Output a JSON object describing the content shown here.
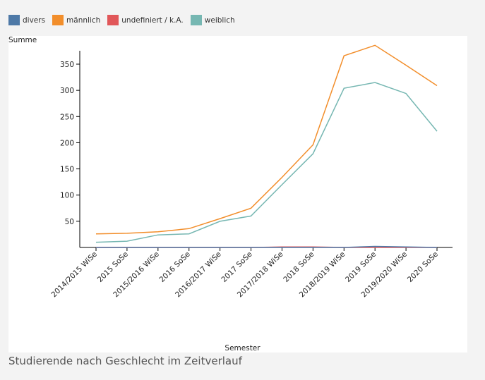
{
  "legend": [
    {
      "label": "divers",
      "color": "#4e79a7"
    },
    {
      "label": "männlich",
      "color": "#f28e2b"
    },
    {
      "label": "undefiniert / k.A.",
      "color": "#e15759"
    },
    {
      "label": "weiblich",
      "color": "#76b7b2"
    }
  ],
  "chart_data": {
    "type": "line",
    "title": "Studierende nach Geschlecht im Zeitverlauf",
    "xlabel": "Semester",
    "ylabel": "Summe",
    "categories": [
      "2014/2015 WiSe",
      "2015 SoSe",
      "2015/2016 WiSe",
      "2016 SoSe",
      "2016/2017 WiSe",
      "2017 SoSe",
      "2017/2018 WiSe",
      "2018 SoSe",
      "2018/2019 WiSe",
      "2019 SoSe",
      "2019/2020 WiSe",
      "2020 SoSe"
    ],
    "ylim": [
      0,
      385
    ],
    "yticks": [
      50,
      100,
      150,
      200,
      250,
      300,
      350
    ],
    "grid": false,
    "legend_position": "top-left",
    "series": [
      {
        "name": "divers",
        "color": "#4e79a7",
        "values": [
          0,
          0,
          0,
          0,
          0,
          0,
          0,
          0,
          0,
          2,
          1,
          0
        ]
      },
      {
        "name": "männlich",
        "color": "#f28e2b",
        "values": [
          26,
          27,
          30,
          36,
          55,
          75,
          134,
          196,
          366,
          386,
          348,
          309
        ]
      },
      {
        "name": "undefiniert / k.A.",
        "color": "#e15759",
        "values": [
          0,
          0,
          0,
          0,
          0,
          0,
          1,
          1,
          0,
          0,
          0,
          0
        ]
      },
      {
        "name": "weiblich",
        "color": "#76b7b2",
        "values": [
          10,
          12,
          24,
          26,
          50,
          60,
          120,
          179,
          304,
          315,
          294,
          222
        ]
      }
    ]
  }
}
